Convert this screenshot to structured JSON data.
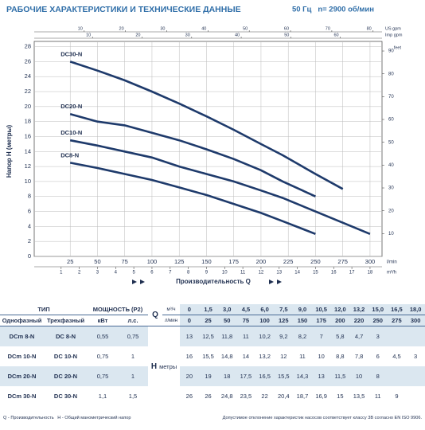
{
  "chart_data": {
    "type": "line",
    "title": "РАБОЧИЕ ХАРАКТЕРИСТИКИ И ТЕХНИЧЕСКИЕ ДАННЫЕ",
    "subtitle": "50 Гц   n= 2900 об/мин",
    "y_label": "Напор H (метры)",
    "x_label": "Производительность Q",
    "x_unit": "l/min",
    "xlim": [
      -8,
      311
    ],
    "xticks": [
      25,
      50,
      75,
      100,
      125,
      150,
      175,
      200,
      225,
      250,
      275,
      300
    ],
    "ylim": [
      0,
      28.7
    ],
    "yticks": [
      0,
      2,
      4,
      6,
      8,
      10,
      12,
      14,
      16,
      18,
      20,
      22,
      24,
      26,
      28
    ],
    "y2_label": "feet",
    "y2lim": [
      0,
      94.2
    ],
    "y2ticks": [
      10,
      20,
      30,
      40,
      50,
      60,
      70,
      80,
      90
    ],
    "x_bottom2": {
      "label": "m³/h",
      "lim": [
        -0.48,
        18.66
      ],
      "ticks": [
        1,
        2,
        3,
        4,
        5,
        6,
        7,
        8,
        9,
        10,
        11,
        12,
        13,
        14,
        15,
        16,
        17,
        18
      ]
    },
    "x_top": [
      {
        "label": "US gpm",
        "lim": [
          -2.11,
          82.17
        ],
        "ticks": [
          10,
          20,
          30,
          40,
          50,
          60,
          70,
          80
        ]
      },
      {
        "label": "Imp gpm",
        "lim": [
          -1.76,
          68.41
        ],
        "ticks": [
          10,
          20,
          30,
          40,
          50,
          60
        ]
      }
    ],
    "grid": true,
    "series": [
      {
        "name": "DC30-N",
        "color": "#1e3a6b",
        "x": [
          25,
          50,
          75,
          100,
          125,
          150,
          175,
          200,
          220,
          250,
          275
        ],
        "values": [
          26,
          24.8,
          23.5,
          22,
          20.4,
          18.7,
          16.9,
          15,
          13.5,
          11,
          9
        ]
      },
      {
        "name": "DC20-N",
        "color": "#1e3a6b",
        "x": [
          25,
          50,
          75,
          100,
          125,
          150,
          175,
          200,
          220,
          250
        ],
        "values": [
          19,
          18,
          17.5,
          16.5,
          15.5,
          14.3,
          13,
          11.5,
          10,
          8
        ]
      },
      {
        "name": "DC10-N",
        "color": "#1e3a6b",
        "x": [
          25,
          50,
          75,
          100,
          125,
          150,
          175,
          200,
          220,
          250,
          275,
          300
        ],
        "values": [
          15.5,
          14.8,
          14,
          13.2,
          12,
          11,
          10,
          8.8,
          7.8,
          6,
          4.5,
          3
        ]
      },
      {
        "name": "DC8-N",
        "color": "#1e3a6b",
        "x": [
          25,
          50,
          75,
          100,
          125,
          150,
          175,
          200,
          220,
          250
        ],
        "values": [
          12.5,
          11.8,
          11,
          10.2,
          9.2,
          8.2,
          7,
          5.8,
          4.7,
          3
        ]
      }
    ]
  },
  "table": {
    "header": {
      "type": "ТИП",
      "single": "Однофазный",
      "three": "Трехфазный",
      "power": "МОЩНОСТЬ (P2)",
      "kw": "кВт",
      "hp": "л.с.",
      "q": "Q",
      "m3h": "м³/ч",
      "lmin": "л/мин",
      "h": "H",
      "h_unit": "метры"
    },
    "q_m3h": [
      "0",
      "1,5",
      "3,0",
      "4,5",
      "6,0",
      "7,5",
      "9,0",
      "10,5",
      "12,0",
      "13,2",
      "15,0",
      "16,5",
      "18,0"
    ],
    "q_lmin": [
      "0",
      "25",
      "50",
      "75",
      "100",
      "125",
      "150",
      "175",
      "200",
      "220",
      "250",
      "275",
      "300"
    ],
    "rows": [
      {
        "single": "DCm 8-N",
        "three": "DC 8-N",
        "kw": "0,55",
        "hp": "0,75",
        "h": [
          "13",
          "12,5",
          "11,8",
          "11",
          "10,2",
          "9,2",
          "8,2",
          "7",
          "5,8",
          "4,7",
          "3"
        ]
      },
      {
        "single": "DCm 10-N",
        "three": "DC 10-N",
        "kw": "0,75",
        "hp": "1",
        "h": [
          "16",
          "15,5",
          "14,8",
          "14",
          "13,2",
          "12",
          "11",
          "10",
          "8,8",
          "7,8",
          "6",
          "4,5",
          "3"
        ]
      },
      {
        "single": "DCm 20-N",
        "three": "DC 20-N",
        "kw": "0,75",
        "hp": "1",
        "h": [
          "20",
          "19",
          "18",
          "17,5",
          "16,5",
          "15,5",
          "14,3",
          "13",
          "11,5",
          "10",
          "8"
        ]
      },
      {
        "single": "DCm 30-N",
        "three": "DC 30-N",
        "kw": "1,1",
        "hp": "1,5",
        "h": [
          "26",
          "26",
          "24,8",
          "23,5",
          "22",
          "20,4",
          "18,7",
          "16,9",
          "15",
          "13,5",
          "11",
          "9"
        ]
      }
    ]
  },
  "footer": {
    "left": "Q - Производительность   H - Общий манометрический напор",
    "right": "Допустимое отклонение характеристик насосов соответствует классу 3B согласно EN ISO 9906."
  }
}
